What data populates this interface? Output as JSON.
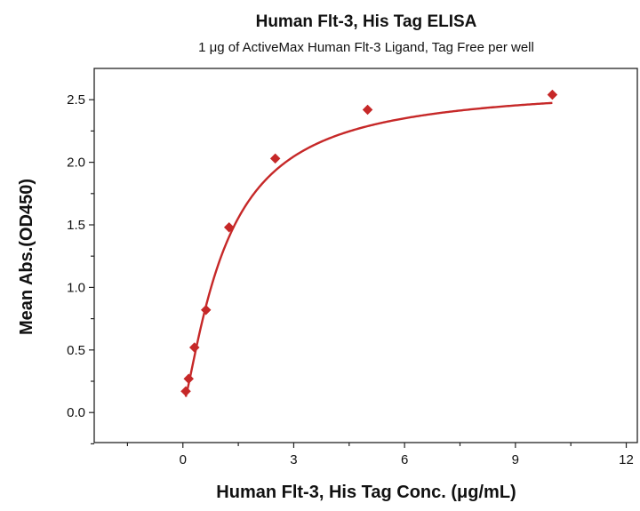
{
  "chart_data": {
    "type": "scatter",
    "title": "Human Flt-3, His Tag ELISA",
    "subtitle": "1 μg of ActiveMax Human Flt-3 Ligand, Tag Free per well",
    "xlabel": "Human Flt-3, His Tag Conc. (μg/mL)",
    "ylabel": "Mean Abs.(OD450)",
    "xlim": [
      -2.4,
      12.3
    ],
    "ylim": [
      -0.24,
      2.75
    ],
    "x_ticks": [
      0,
      3,
      6,
      9,
      12
    ],
    "x_tick_labels": [
      "0",
      "3",
      "6",
      "9",
      "12"
    ],
    "y_ticks": [
      0.0,
      0.5,
      1.0,
      1.5,
      2.0,
      2.5
    ],
    "y_tick_labels": [
      "0.0",
      "0.5",
      "1.0",
      "1.5",
      "2.0",
      "2.5"
    ],
    "points": [
      {
        "x": 0.078,
        "y": 0.17
      },
      {
        "x": 0.156,
        "y": 0.27
      },
      {
        "x": 0.3125,
        "y": 0.52
      },
      {
        "x": 0.625,
        "y": 0.82
      },
      {
        "x": 1.25,
        "y": 1.48
      },
      {
        "x": 2.5,
        "y": 2.03
      },
      {
        "x": 5.0,
        "y": 2.42
      },
      {
        "x": 10.0,
        "y": 2.54
      }
    ],
    "fit": {
      "model": "hill",
      "bottom": 0.05,
      "top": 2.62,
      "ec50": 1.15,
      "hill": 1.3,
      "x_range": [
        0.078,
        10.0
      ]
    },
    "grid": false,
    "legend": "none",
    "color": "#c62828"
  }
}
